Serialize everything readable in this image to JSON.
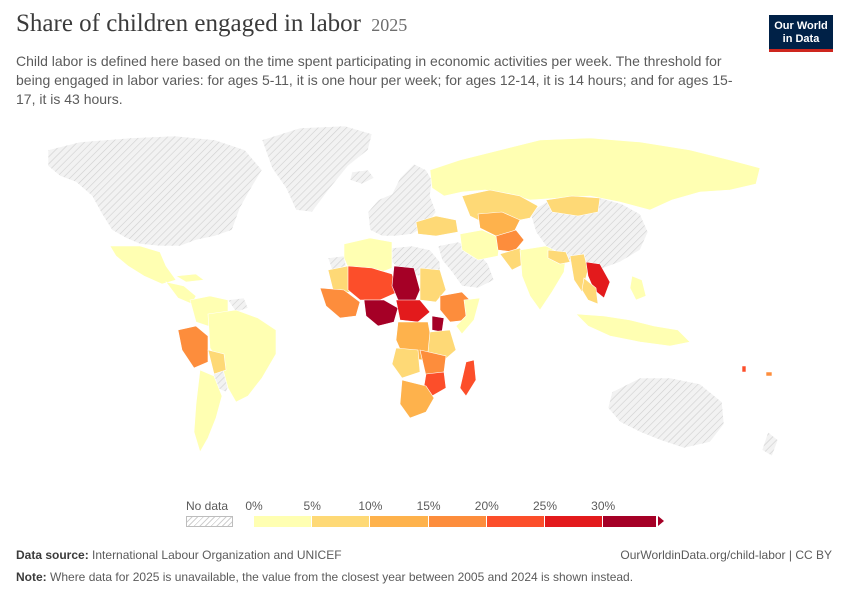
{
  "header": {
    "title": "Share of children engaged in labor",
    "year": "2025",
    "subtitle": "Child labor is defined here based on the time spent participating in economic activities per week. The threshold for being engaged in labor varies: for ages 5-11, it is one hour per week; for ages 12-14, it is 14 hours; and for ages 15-17, it is 43 hours."
  },
  "logo": {
    "line1": "Our World",
    "line2": "in Data"
  },
  "colors": {
    "no_data_fill": "#f2f2f2",
    "no_data_hatch": "#cfcfcf",
    "border": "#ffffff",
    "bins": [
      "#ffffb2",
      "#fed976",
      "#feb24c",
      "#fd8d3c",
      "#fc4e2a",
      "#e31a1c",
      "#a50026"
    ]
  },
  "legend": {
    "no_data_label": "No data",
    "ticks": [
      "0%",
      "5%",
      "10%",
      "15%",
      "20%",
      "25%",
      "30%"
    ],
    "bins": [
      {
        "min": 0,
        "max": 5
      },
      {
        "min": 5,
        "max": 10
      },
      {
        "min": 10,
        "max": 15
      },
      {
        "min": 15,
        "max": 20
      },
      {
        "min": 20,
        "max": 25
      },
      {
        "min": 25,
        "max": 30
      },
      {
        "min": 30,
        "max": null
      }
    ]
  },
  "footer": {
    "source_label": "Data source:",
    "source_text": "International Labour Organization and UNICEF",
    "url": "OurWorldinData.org/child-labor | CC BY",
    "note_label": "Note:",
    "note_text": "Where data for 2025 is unavailable, the value from the closest year between 2005 and 2024 is shown instead."
  }
}
